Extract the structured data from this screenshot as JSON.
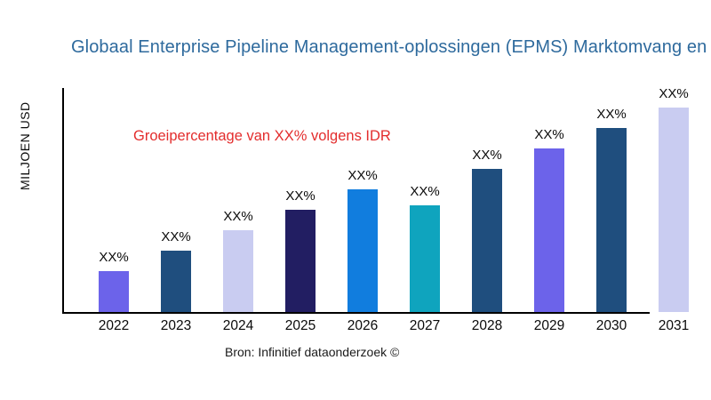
{
  "chart_data": {
    "type": "bar",
    "title": "Globaal Enterprise Pipeline Management-oplossingen (EPMS) Marktomvang en",
    "ylabel": "MILJOEN USD",
    "xlabel": "",
    "annotation": "Groeipercentage van XX% volgens IDR",
    "source": "Bron: Infinitief dataonderzoek ©",
    "categories": [
      "2022",
      "2023",
      "2024",
      "2025",
      "2026",
      "2027",
      "2028",
      "2029",
      "2030",
      "2031"
    ],
    "bar_value_labels": [
      "XX%",
      "XX%",
      "XX%",
      "XX%",
      "XX%",
      "XX%",
      "XX%",
      "XX%",
      "XX%",
      "XX%"
    ],
    "values_relative_pct_of_max": [
      20,
      30,
      40,
      50,
      60,
      52,
      70,
      80,
      90,
      100
    ],
    "bar_colors": [
      "#6C63EA",
      "#1F4E7E",
      "#C9CCF1",
      "#221E62",
      "#117DDE",
      "#0FA4BE",
      "#1F4E7E",
      "#6C63EA",
      "#1F4E7E",
      "#C9CCF1"
    ],
    "grid": "off",
    "legend": "none",
    "colors": {
      "title": "#2E6A9D",
      "annotation": "#E32D2D",
      "axis": "#000000",
      "background": "#FFFFFF"
    }
  }
}
